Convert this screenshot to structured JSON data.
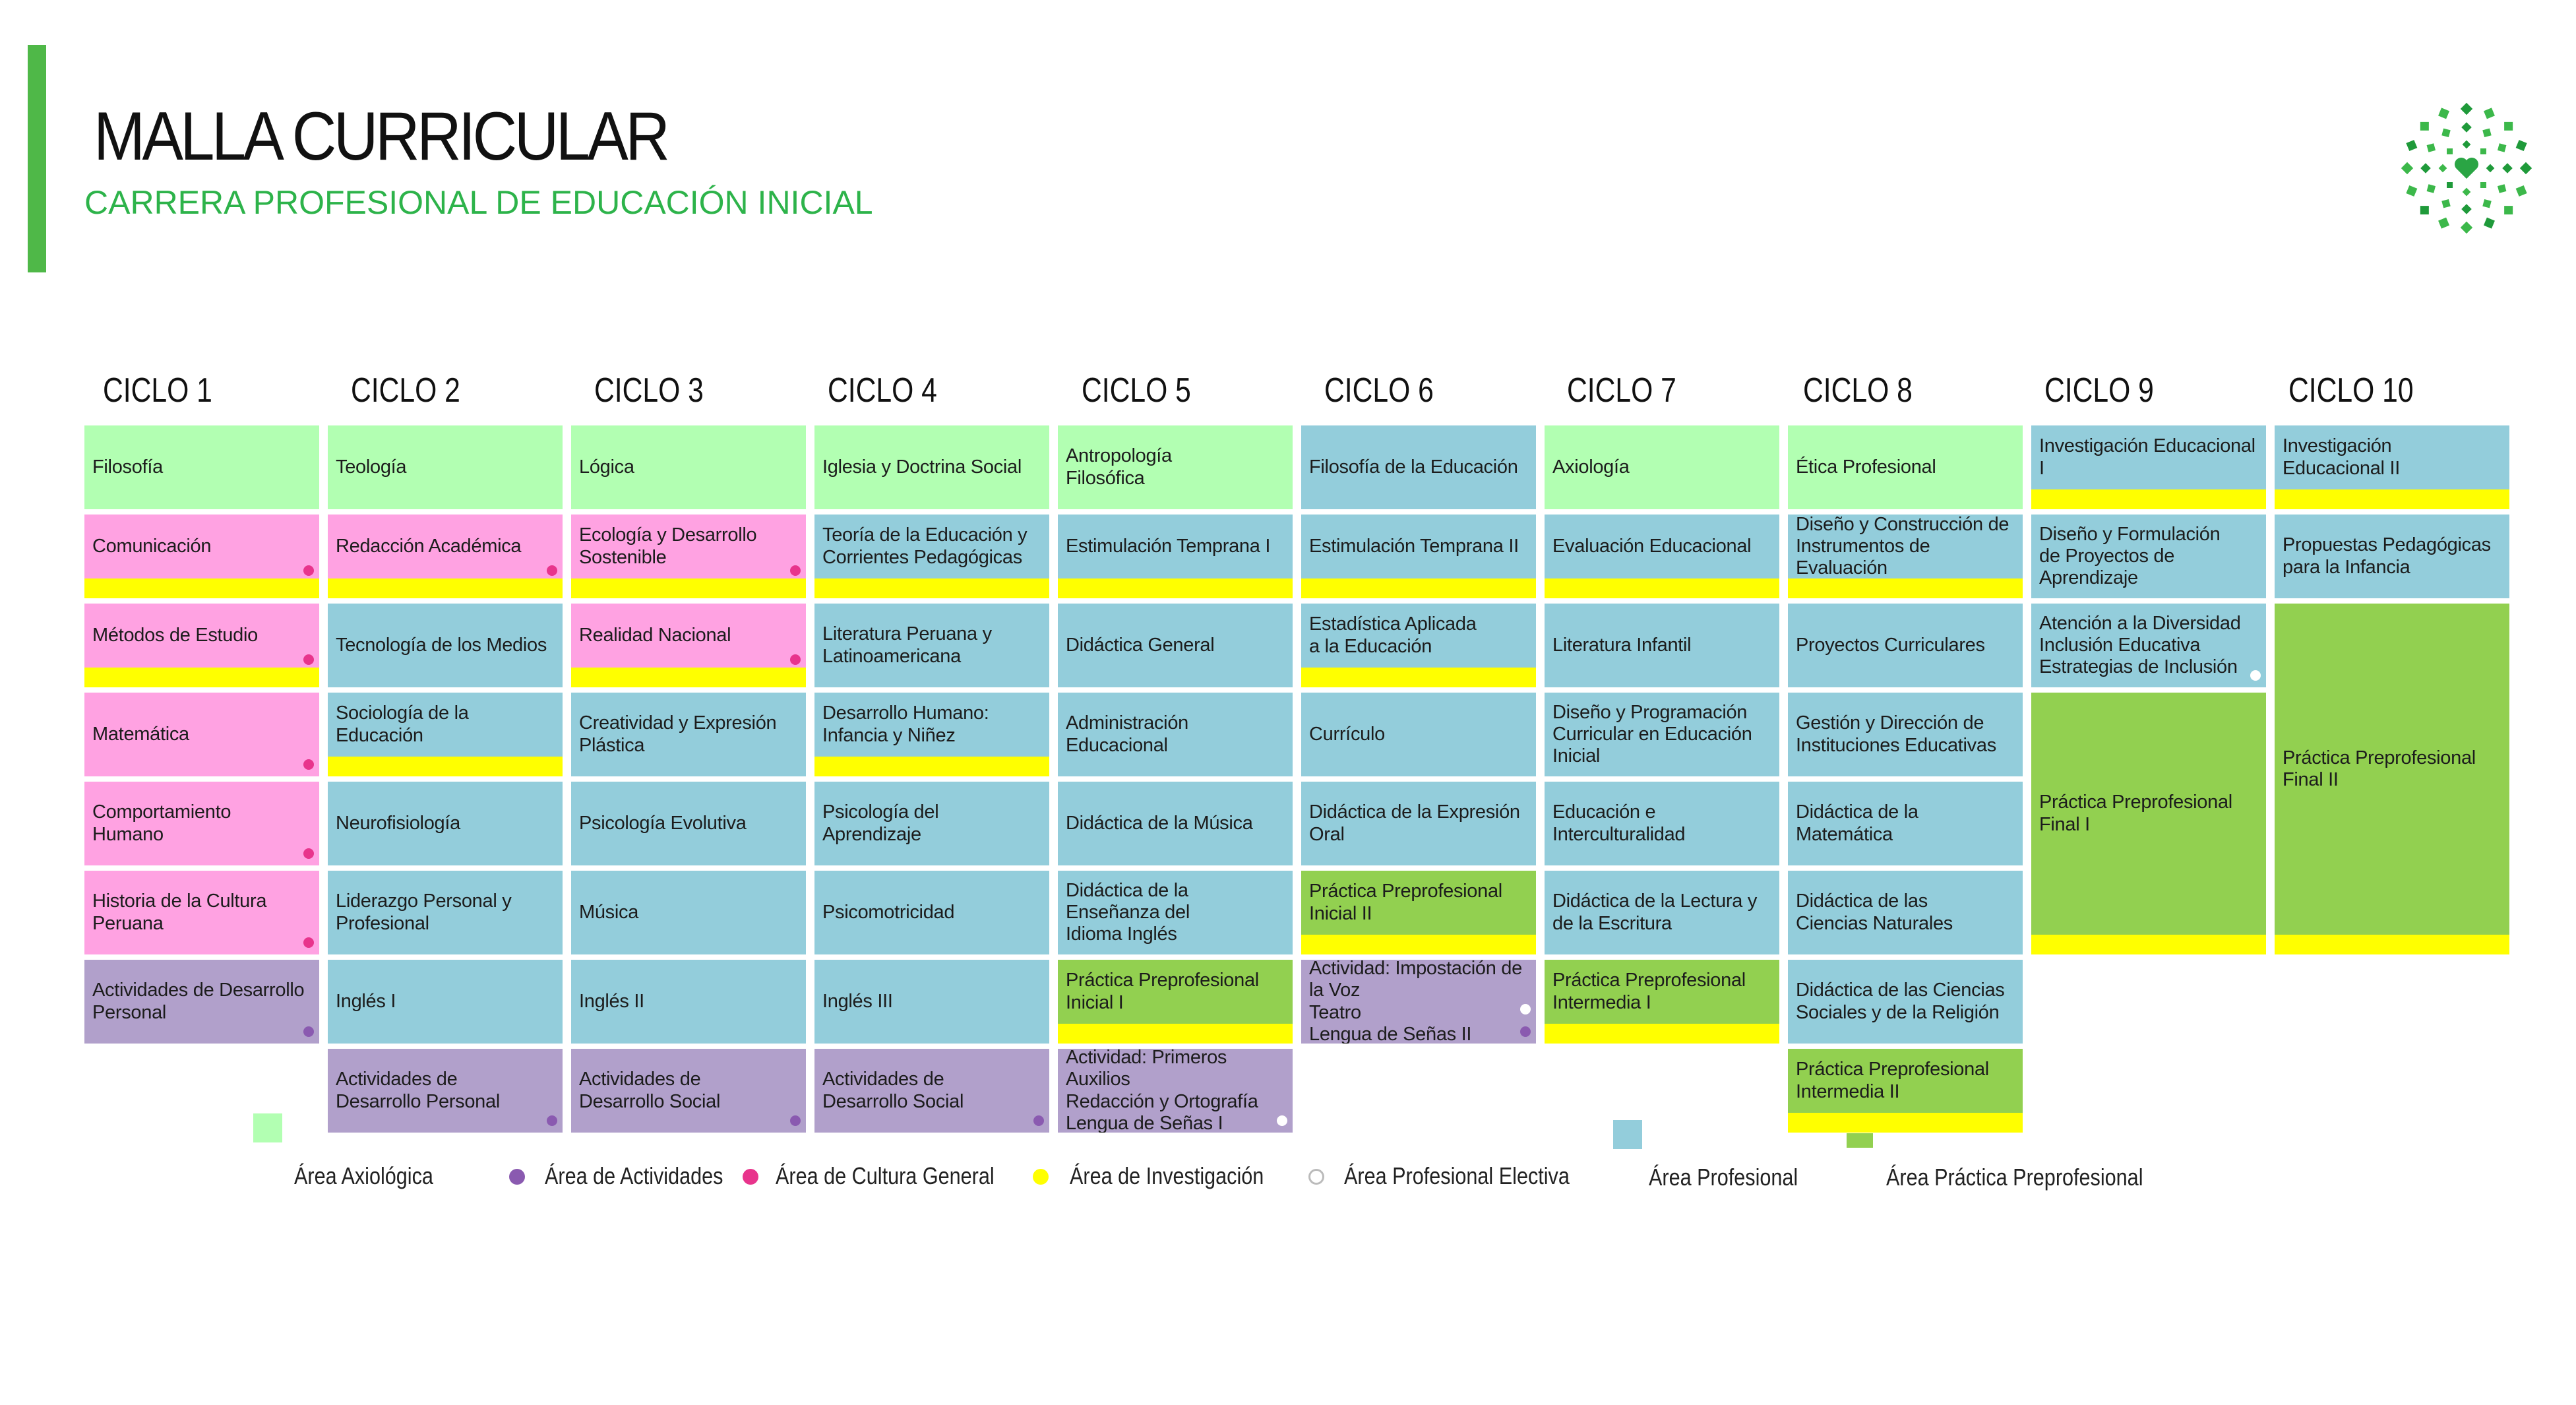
{
  "header": {
    "title": "MALLA CURRICULAR",
    "subtitle": "CARRERA PROFESIONAL DE EDUCACIÓN INICIAL"
  },
  "colors": {
    "accent": "#4fb848",
    "axiologica": "#b2ffb2",
    "cultura": "#ffa2e2",
    "actividades": "#b1a0cb",
    "profesional": "#93cddb",
    "practica": "#92d050",
    "investigacion": "#ffff00",
    "dot_cultura": "#e8348c",
    "dot_actividades": "#8a5ab0",
    "dot_electiva": "#ffffff"
  },
  "cycles": [
    {
      "label": "CICLO 1",
      "courses": [
        {
          "name": "Filosofía",
          "area": "axiologica",
          "research": false,
          "dot": null
        },
        {
          "name": "Comunicación",
          "area": "cultura",
          "research": true,
          "dot": "cultura"
        },
        {
          "name": "Métodos de Estudio",
          "area": "cultura",
          "research": true,
          "dot": "cultura"
        },
        {
          "name": "Matemática",
          "area": "cultura",
          "research": false,
          "dot": "cultura"
        },
        {
          "name": "Comportamiento\nHumano",
          "area": "cultura",
          "research": false,
          "dot": "cultura"
        },
        {
          "name": "Historia de la Cultura\nPeruana",
          "area": "cultura",
          "research": false,
          "dot": "cultura"
        },
        {
          "name": "Actividades de Desarrollo\nPersonal",
          "area": "actividades",
          "research": false,
          "dot": "actividades"
        }
      ]
    },
    {
      "label": "CICLO 2",
      "courses": [
        {
          "name": "Teología",
          "area": "axiologica",
          "research": false,
          "dot": null
        },
        {
          "name": "Redacción Académica",
          "area": "cultura",
          "research": true,
          "dot": "cultura"
        },
        {
          "name": "Tecnología de los Medios",
          "area": "profesional",
          "research": false,
          "dot": null
        },
        {
          "name": "Sociología de la Educación",
          "area": "profesional",
          "research": true,
          "dot": null
        },
        {
          "name": "Neurofisiología",
          "area": "profesional",
          "research": false,
          "dot": null
        },
        {
          "name": "Liderazgo Personal y\nProfesional",
          "area": "profesional",
          "research": false,
          "dot": null
        },
        {
          "name": "Inglés I",
          "area": "profesional",
          "research": false,
          "dot": null
        },
        {
          "name": "Actividades de\nDesarrollo Personal",
          "area": "actividades",
          "research": false,
          "dot": "actividades"
        }
      ]
    },
    {
      "label": "CICLO 3",
      "courses": [
        {
          "name": "Lógica",
          "area": "axiologica",
          "research": false,
          "dot": null
        },
        {
          "name": "Ecología y Desarrollo\nSostenible",
          "area": "cultura",
          "research": true,
          "dot": "cultura"
        },
        {
          "name": "Realidad Nacional",
          "area": "cultura",
          "research": true,
          "dot": "cultura"
        },
        {
          "name": "Creatividad y Expresión Plástica",
          "area": "profesional",
          "research": false,
          "dot": null
        },
        {
          "name": "Psicología Evolutiva",
          "area": "profesional",
          "research": false,
          "dot": null
        },
        {
          "name": "Música",
          "area": "profesional",
          "research": false,
          "dot": null
        },
        {
          "name": "Inglés II",
          "area": "profesional",
          "research": false,
          "dot": null
        },
        {
          "name": "Actividades de\nDesarrollo Social",
          "area": "actividades",
          "research": false,
          "dot": "actividades"
        }
      ]
    },
    {
      "label": "CICLO 4",
      "courses": [
        {
          "name": "Iglesia y Doctrina Social",
          "area": "axiologica",
          "research": false,
          "dot": null
        },
        {
          "name": "Teoría de la Educación y\nCorrientes Pedagógicas",
          "area": "profesional",
          "research": true,
          "dot": null
        },
        {
          "name": "Literatura Peruana y\nLatinoamericana",
          "area": "profesional",
          "research": false,
          "dot": null
        },
        {
          "name": "Desarrollo Humano:\nInfancia y Niñez",
          "area": "profesional",
          "research": true,
          "dot": null
        },
        {
          "name": "Psicología del Aprendizaje",
          "area": "profesional",
          "research": false,
          "dot": null
        },
        {
          "name": "Psicomotricidad",
          "area": "profesional",
          "research": false,
          "dot": null
        },
        {
          "name": "Inglés III",
          "area": "profesional",
          "research": false,
          "dot": null
        },
        {
          "name": "Actividades de\nDesarrollo Social",
          "area": "actividades",
          "research": false,
          "dot": "actividades"
        }
      ]
    },
    {
      "label": "CICLO 5",
      "courses": [
        {
          "name": "Antropología\nFilosófica",
          "area": "axiologica",
          "research": false,
          "dot": null
        },
        {
          "name": "Estimulación Temprana I",
          "area": "profesional",
          "research": true,
          "dot": null
        },
        {
          "name": "Didáctica General",
          "area": "profesional",
          "research": false,
          "dot": null
        },
        {
          "name": "Administración Educacional",
          "area": "profesional",
          "research": false,
          "dot": null
        },
        {
          "name": "Didáctica de la Música",
          "area": "profesional",
          "research": false,
          "dot": null
        },
        {
          "name": "Didáctica de la Enseñanza del\nIdioma Inglés",
          "area": "profesional",
          "research": false,
          "dot": null
        },
        {
          "name": "Práctica Preprofesional\nInicial I",
          "area": "practica",
          "research": true,
          "dot": null
        },
        {
          "name": "Actividad: Primeros Auxilios\nRedacción y Ortografía\nLengua de Señas I",
          "area": "actividades",
          "research": false,
          "dot": "electiva"
        }
      ]
    },
    {
      "label": "CICLO 6",
      "courses": [
        {
          "name": "Filosofía de la Educación",
          "area": "profesional",
          "research": false,
          "dot": null
        },
        {
          "name": "Estimulación Temprana II",
          "area": "profesional",
          "research": true,
          "dot": null
        },
        {
          "name": "Estadística Aplicada\na la Educación",
          "area": "profesional",
          "research": true,
          "dot": null
        },
        {
          "name": "Currículo",
          "area": "profesional",
          "research": false,
          "dot": null
        },
        {
          "name": "Didáctica de la Expresión Oral",
          "area": "profesional",
          "research": false,
          "dot": null
        },
        {
          "name": "Práctica Preprofesional\nInicial II",
          "area": "practica",
          "research": true,
          "dot": null
        },
        {
          "name": "Actividad: Impostación de la Voz\nTeatro\nLengua de Señas II",
          "area": "actividades",
          "research": false,
          "dot": "electiva",
          "dot2": "actividades"
        }
      ]
    },
    {
      "label": "CICLO 7",
      "courses": [
        {
          "name": "Axiología",
          "area": "axiologica",
          "research": false,
          "dot": null
        },
        {
          "name": "Evaluación Educacional",
          "area": "profesional",
          "research": true,
          "dot": null
        },
        {
          "name": "Literatura Infantil",
          "area": "profesional",
          "research": false,
          "dot": null
        },
        {
          "name": "Diseño y Programación\nCurricular en Educación Inicial",
          "area": "profesional",
          "research": false,
          "dot": null
        },
        {
          "name": "Educación e Interculturalidad",
          "area": "profesional",
          "research": false,
          "dot": null
        },
        {
          "name": "Didáctica de la Lectura y\nde la Escritura",
          "area": "profesional",
          "research": false,
          "dot": null
        },
        {
          "name": "Práctica Preprofesional\nIntermedia I",
          "area": "practica",
          "research": true,
          "dot": null
        }
      ]
    },
    {
      "label": "CICLO 8",
      "courses": [
        {
          "name": "Ética Profesional",
          "area": "axiologica",
          "research": false,
          "dot": null
        },
        {
          "name": "Diseño y Construcción de\nInstrumentos de Evaluación",
          "area": "profesional",
          "research": true,
          "dot": null
        },
        {
          "name": "Proyectos Curriculares",
          "area": "profesional",
          "research": false,
          "dot": null
        },
        {
          "name": "Gestión y Dirección de\nInstituciones Educativas",
          "area": "profesional",
          "research": false,
          "dot": null
        },
        {
          "name": "Didáctica de la Matemática",
          "area": "profesional",
          "research": false,
          "dot": null
        },
        {
          "name": "Didáctica de las\nCiencias Naturales",
          "area": "profesional",
          "research": false,
          "dot": null
        },
        {
          "name": "Didáctica de las Ciencias\nSociales y de la Religión",
          "area": "profesional",
          "research": false,
          "dot": null
        },
        {
          "name": "Práctica Preprofesional\nIntermedia II",
          "area": "practica",
          "research": true,
          "dot": null
        }
      ]
    },
    {
      "label": "CICLO 9",
      "courses": [
        {
          "name": "Investigación Educacional I",
          "area": "profesional",
          "research": true,
          "dot": null
        },
        {
          "name": "Diseño y Formulación\nde Proyectos de\nAprendizaje",
          "area": "profesional",
          "research": false,
          "dot": null
        },
        {
          "name": "Atención a la Diversidad\nInclusión Educativa\nEstrategias de Inclusión",
          "area": "profesional",
          "research": false,
          "dot": "electiva"
        },
        {
          "name": "Práctica Preprofesional\nFinal I",
          "area": "practica",
          "research": true,
          "dot": null,
          "span": 3
        }
      ]
    },
    {
      "label": "CICLO 10",
      "courses": [
        {
          "name": "Investigación\nEducacional II",
          "area": "profesional",
          "research": true,
          "dot": null
        },
        {
          "name": "Propuestas Pedagógicas\npara la Infancia",
          "area": "profesional",
          "research": false,
          "dot": null
        },
        {
          "name": "Práctica Preprofesional\nFinal II",
          "area": "practica",
          "research": true,
          "dot": null,
          "span": 4
        }
      ]
    }
  ],
  "legend": {
    "axiologica": "Área Axiológica",
    "actividades": "Área de Actividades",
    "cultura": "Área de Cultura General",
    "investigacion": "Área de Investigación",
    "electiva": "Área Profesional Electiva",
    "profesional": "Área Profesional",
    "practica": "Área Práctica Preprofesional"
  }
}
